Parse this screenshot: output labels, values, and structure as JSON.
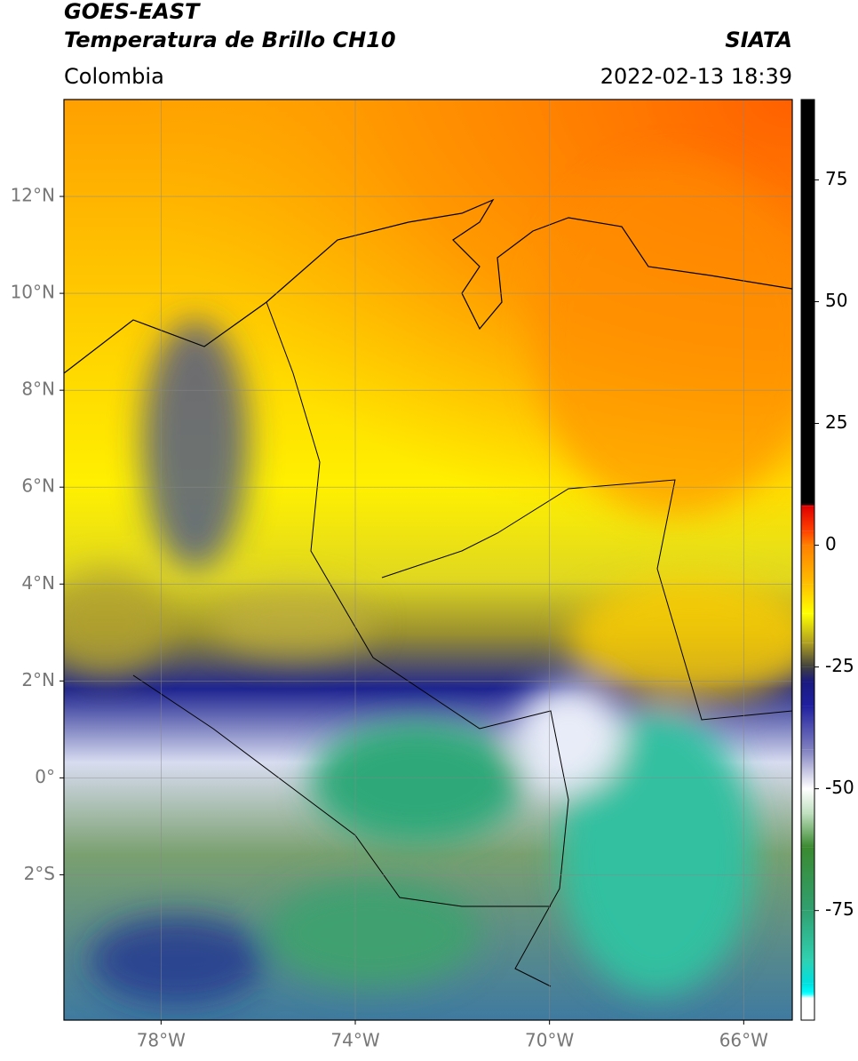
{
  "header": {
    "title": "GOES-EAST",
    "subtitle": "Temperatura de Brillo CH10",
    "source": "SIATA",
    "region": "Colombia",
    "datetime": "2022-02-13 18:39"
  },
  "map": {
    "xlim": [
      -80,
      -65
    ],
    "ylim": [
      -5,
      14
    ],
    "xticks": [
      {
        "value": -78,
        "label": "78°W"
      },
      {
        "value": -74,
        "label": "74°W"
      },
      {
        "value": -70,
        "label": "70°W"
      },
      {
        "value": -66,
        "label": "66°W"
      }
    ],
    "yticks": [
      {
        "value": 12,
        "label": "12°N"
      },
      {
        "value": 10,
        "label": "10°N"
      },
      {
        "value": 8,
        "label": "8°N"
      },
      {
        "value": 6,
        "label": "6°N"
      },
      {
        "value": 4,
        "label": "4°N"
      },
      {
        "value": 2,
        "label": "2°N"
      },
      {
        "value": 0,
        "label": "0°"
      },
      {
        "value": -2,
        "label": "2°S"
      }
    ],
    "grid": true
  },
  "colorbar": {
    "lim": [
      -97.5,
      91.5
    ],
    "ticks": [
      75,
      50,
      25,
      0,
      -25,
      -50,
      -75
    ],
    "stops": [
      [
        91.5,
        "#000000"
      ],
      [
        8.5,
        "#000000"
      ],
      [
        8,
        "#e00000"
      ],
      [
        3,
        "#ff4000"
      ],
      [
        0,
        "#ff8000"
      ],
      [
        -8,
        "#ffc000"
      ],
      [
        -14,
        "#ffff00"
      ],
      [
        -20,
        "#b0a020"
      ],
      [
        -25,
        "#404040"
      ],
      [
        -28,
        "#1a1a80"
      ],
      [
        -33,
        "#2020a0"
      ],
      [
        -42,
        "#8080c0"
      ],
      [
        -50,
        "#ffffff"
      ],
      [
        -55,
        "#c0e0c0"
      ],
      [
        -62,
        "#3a8a30"
      ],
      [
        -75,
        "#30a070"
      ],
      [
        -85,
        "#30d0b0"
      ],
      [
        -90,
        "#00e0e0"
      ],
      [
        -92,
        "#00ffff"
      ],
      [
        -93,
        "#ffffff"
      ],
      [
        -97.5,
        "#ffffff"
      ]
    ]
  }
}
